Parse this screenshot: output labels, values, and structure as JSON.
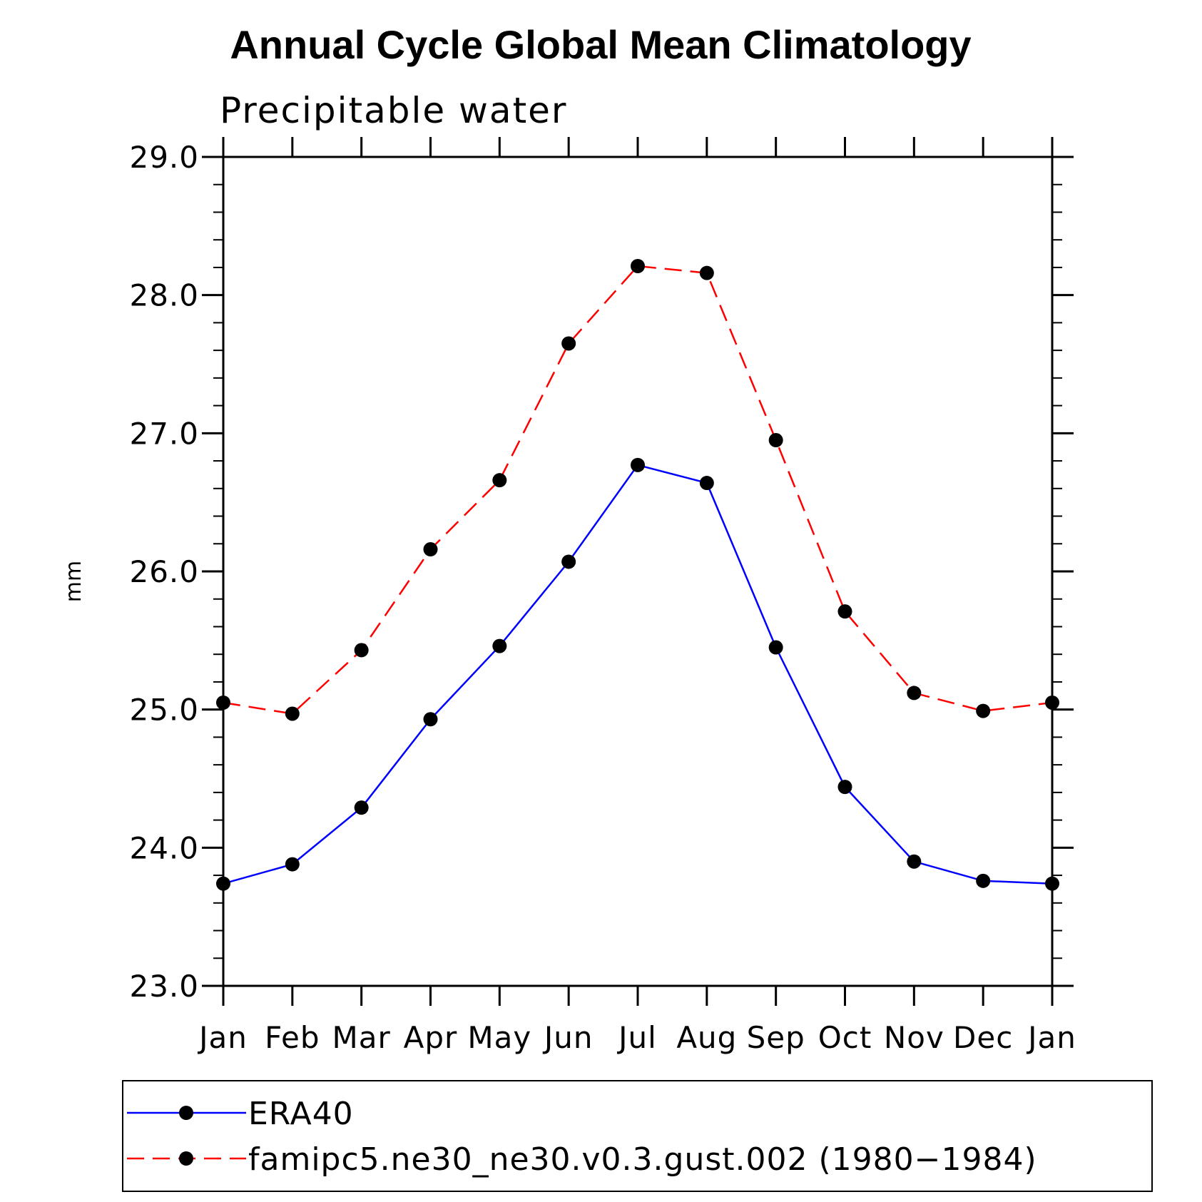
{
  "chart_data": {
    "type": "line",
    "title": "Annual Cycle Global Mean Climatology",
    "subtitle": "Precipitable water",
    "xlabel": "",
    "ylabel": "mm",
    "categories": [
      "Jan",
      "Feb",
      "Mar",
      "Apr",
      "May",
      "Jun",
      "Jul",
      "Aug",
      "Sep",
      "Oct",
      "Nov",
      "Dec",
      "Jan"
    ],
    "ylim": [
      23.0,
      29.0
    ],
    "y_ticks": [
      "23.0",
      "24.0",
      "25.0",
      "26.0",
      "27.0",
      "28.0",
      "29.0"
    ],
    "y_tick_values": [
      23.0,
      24.0,
      25.0,
      26.0,
      27.0,
      28.0,
      29.0
    ],
    "y_minor_step": 0.2,
    "grid": false,
    "legend_position": "bottom",
    "series": [
      {
        "name": "ERA40",
        "color": "#0000ff",
        "line_style": "solid",
        "marker": "filled-circle",
        "values": [
          23.74,
          23.88,
          24.29,
          24.93,
          25.46,
          26.07,
          26.77,
          26.64,
          25.45,
          24.44,
          23.9,
          23.76,
          23.74
        ]
      },
      {
        "name": "famipc5.ne30_ne30.v0.3.gust.002 (1980−1984)",
        "color": "#ff0000",
        "line_style": "dashed",
        "marker": "filled-circle",
        "values": [
          25.05,
          24.97,
          25.43,
          26.16,
          26.66,
          27.65,
          28.21,
          28.16,
          26.95,
          25.71,
          25.12,
          24.99,
          25.05
        ]
      }
    ]
  }
}
